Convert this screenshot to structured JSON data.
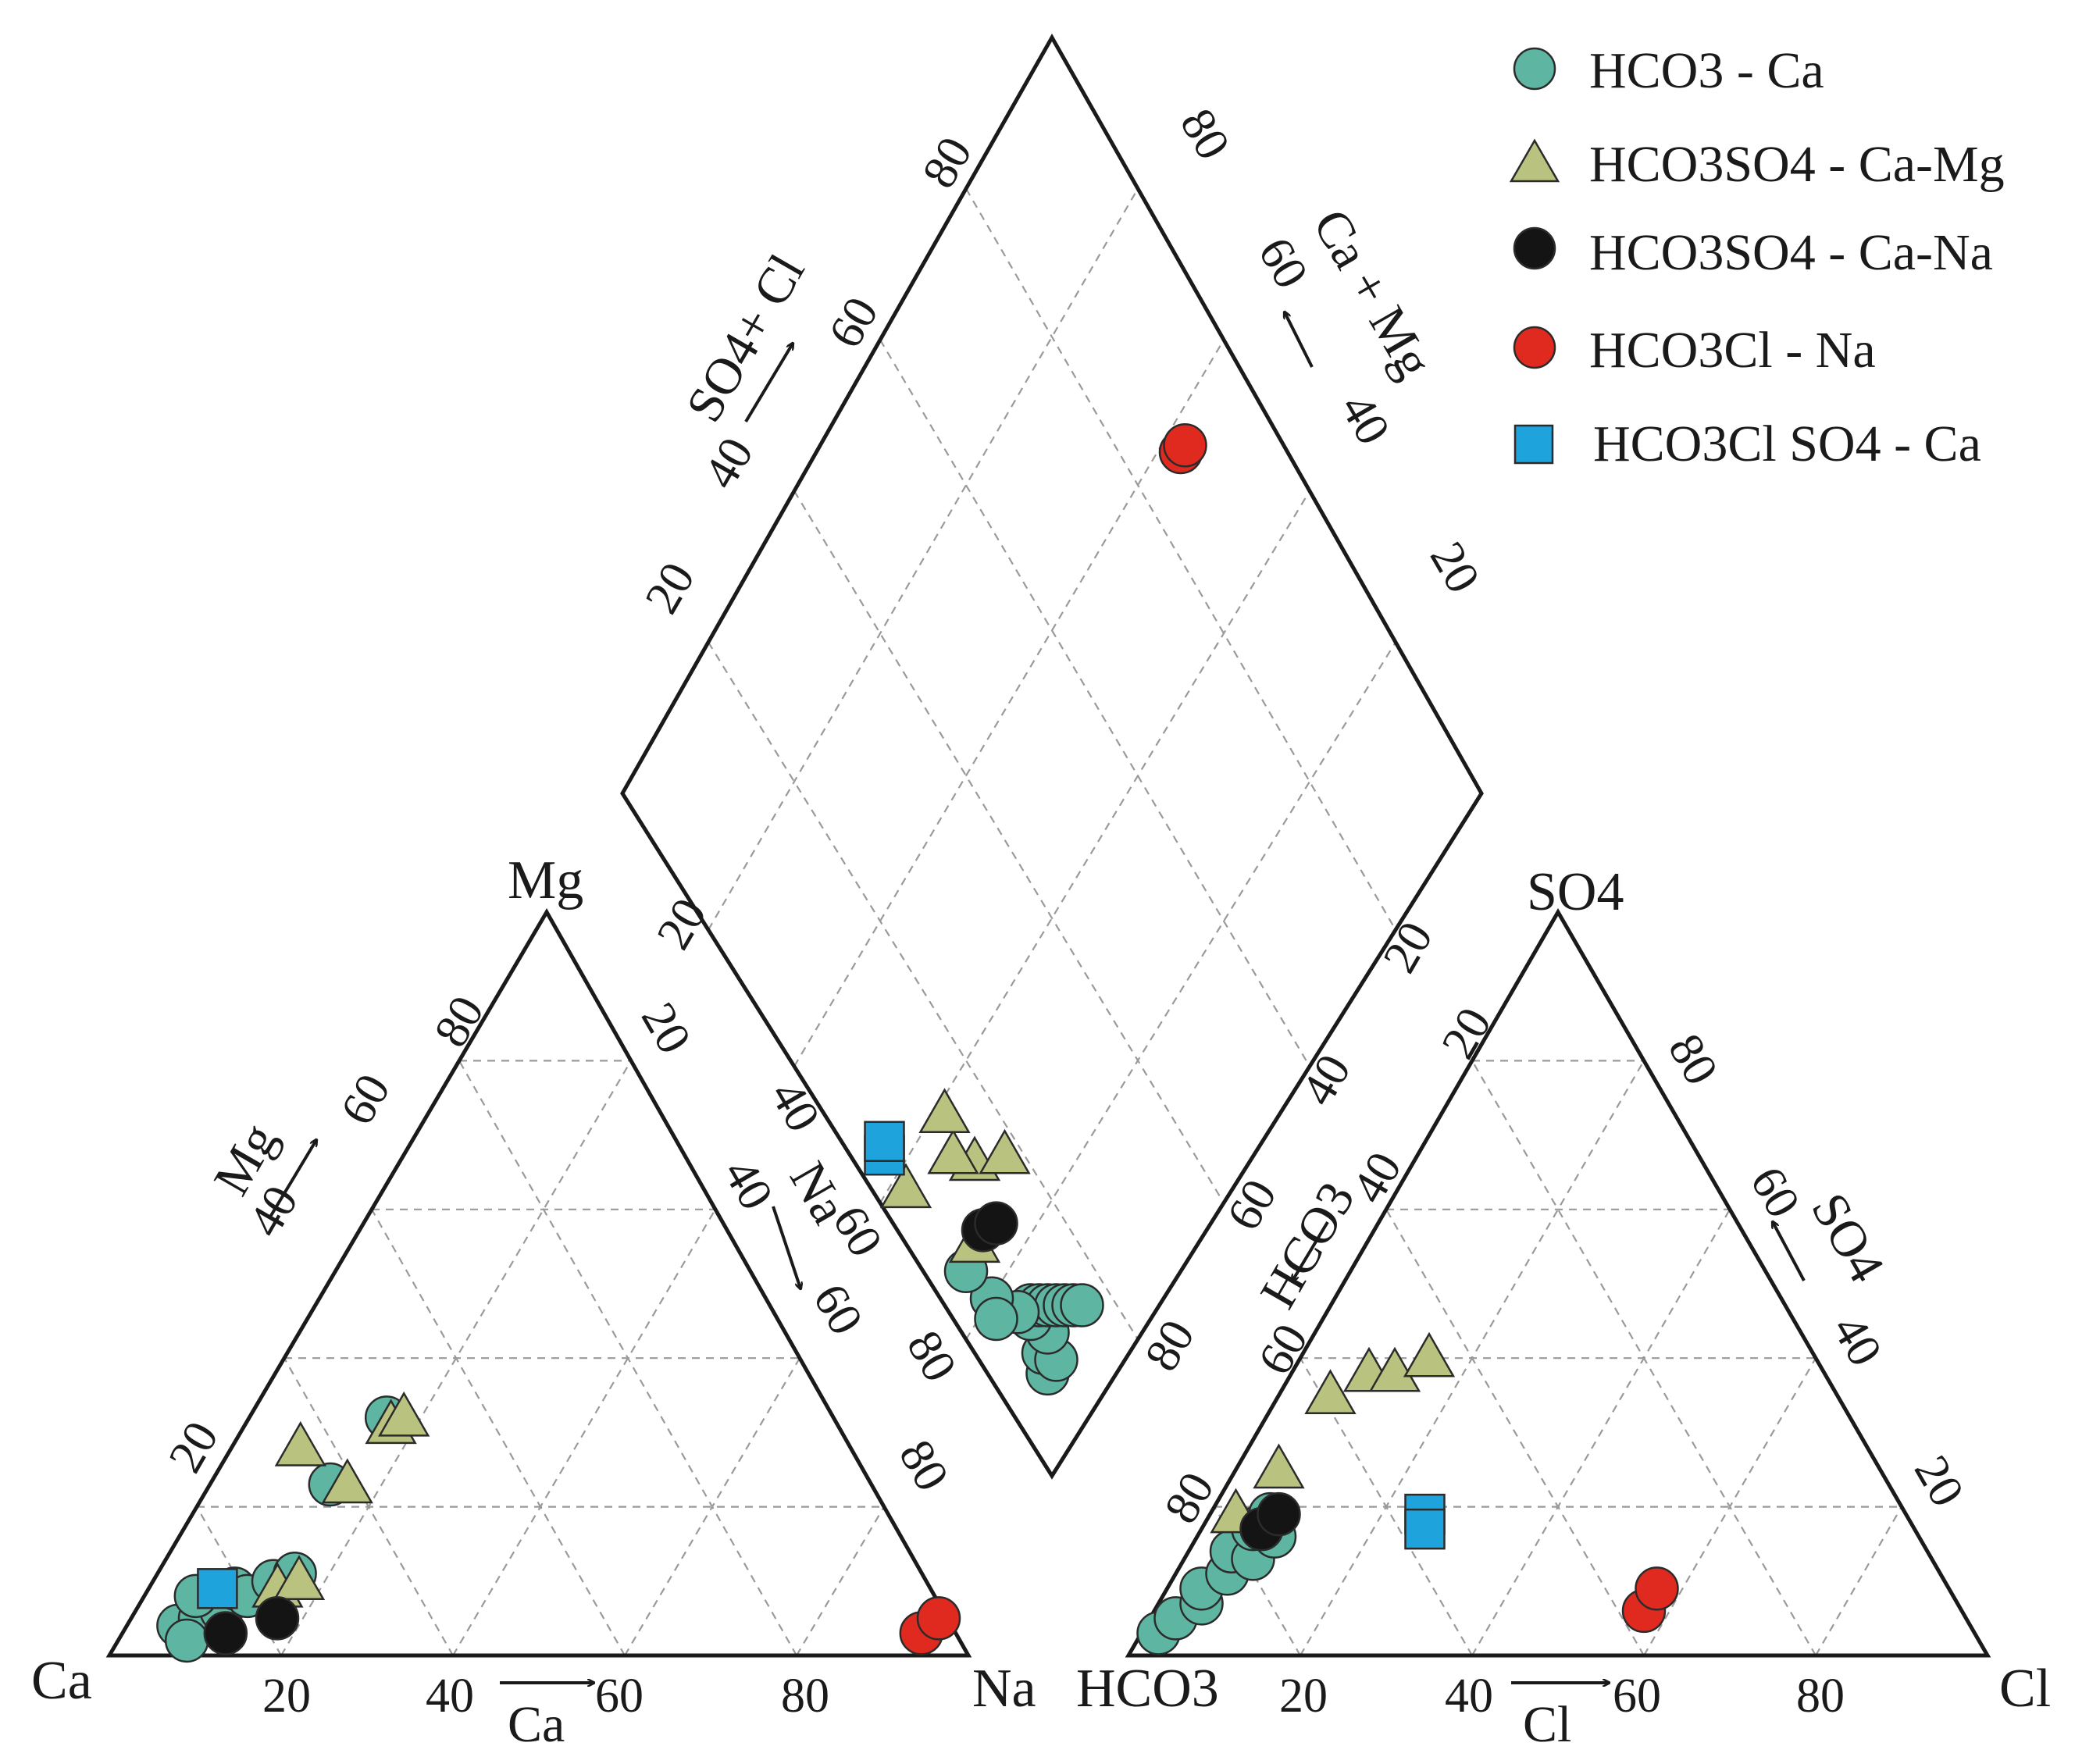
{
  "chart_data": {
    "type": "scatter",
    "subtype": "piper-diagram",
    "legend": [
      {
        "key": "hco3_ca",
        "label": "HCO3 - Ca",
        "marker": "circle",
        "color": "#5db5a2"
      },
      {
        "key": "hco3so4_camg",
        "label": "HCO3SO4 - Ca-Mg",
        "marker": "triangle",
        "color": "#b9c27f"
      },
      {
        "key": "hco3so4_cana",
        "label": "HCO3SO4 - Ca-Na",
        "marker": "circle",
        "color": "#141414"
      },
      {
        "key": "hco3cl_na",
        "label": "HCO3Cl - Na",
        "marker": "circle",
        "color": "#e02a1f"
      },
      {
        "key": "hco3clso4_ca",
        "label": "HCO3Cl SO4 - Ca",
        "marker": "square",
        "color": "#1ea3dc"
      }
    ],
    "legend_position": "top-right",
    "cation_triangle": {
      "vertices": {
        "left": "Ca",
        "top": "Mg",
        "right": "Na"
      },
      "bottom_ticks": [
        "20",
        "40",
        "60",
        "80"
      ],
      "left_ticks": [
        "20",
        "40",
        "60",
        "80"
      ],
      "right_ticks": [
        "20",
        "40",
        "60",
        "80"
      ],
      "bottom_axis_title": "Ca",
      "left_axis_title": "Mg",
      "right_axis_title": "Na"
    },
    "anion_triangle": {
      "vertices": {
        "left": "HCO3",
        "top": "SO4",
        "right": "Cl"
      },
      "bottom_ticks": [
        "20",
        "40",
        "60",
        "80"
      ],
      "left_ticks": [
        "80",
        "60",
        "40",
        "20"
      ],
      "right_ticks": [
        "20",
        "40",
        "60",
        "80"
      ],
      "bottom_axis_title": "Cl",
      "left_axis_title": "HCO3",
      "right_axis_title": "SO4"
    },
    "diamond": {
      "upper_left_ticks": [
        "20",
        "40",
        "60",
        "80"
      ],
      "upper_right_ticks": [
        "80",
        "60",
        "40",
        "20"
      ],
      "lower_left_ticks": [
        "20",
        "40",
        "60",
        "80"
      ],
      "lower_right_ticks": [
        "20",
        "40",
        "60",
        "80"
      ],
      "upper_left_axis_title": "SO4+ Cl",
      "upper_right_axis_title": "Ca + Mg"
    },
    "cation_points": [
      {
        "type": "hco3_ca",
        "na": 6,
        "mg": 4
      },
      {
        "type": "hco3_ca",
        "na": 8,
        "mg": 5
      },
      {
        "type": "hco3_ca",
        "na": 10,
        "mg": 6
      },
      {
        "type": "hco3_ca",
        "na": 6,
        "mg": 8
      },
      {
        "type": "hco3_ca",
        "na": 10,
        "mg": 9
      },
      {
        "type": "hco3_ca",
        "na": 12,
        "mg": 8
      },
      {
        "type": "hco3_ca",
        "na": 14,
        "mg": 10
      },
      {
        "type": "hco3_ca",
        "na": 16,
        "mg": 11
      },
      {
        "type": "hco3_ca",
        "na": 8,
        "mg": 2
      },
      {
        "type": "hco3_ca",
        "na": 14,
        "mg": 23
      },
      {
        "type": "hco3_ca",
        "na": 16,
        "mg": 32
      },
      {
        "type": "hco3so4_camg",
        "na": 15,
        "mg": 9
      },
      {
        "type": "hco3so4_camg",
        "na": 17,
        "mg": 10
      },
      {
        "type": "hco3so4_camg",
        "na": 8,
        "mg": 28
      },
      {
        "type": "hco3so4_camg",
        "na": 16,
        "mg": 23
      },
      {
        "type": "hco3so4_camg",
        "na": 17,
        "mg": 31
      },
      {
        "type": "hco3so4_camg",
        "na": 18,
        "mg": 32
      },
      {
        "type": "hco3so4_cana",
        "na": 12,
        "mg": 3
      },
      {
        "type": "hco3so4_cana",
        "na": 17,
        "mg": 5
      },
      {
        "type": "hco3clso4_ca",
        "na": 8,
        "mg": 9
      },
      {
        "type": "hco3cl_na",
        "na": 93,
        "mg": 3
      },
      {
        "type": "hco3cl_na",
        "na": 94,
        "mg": 5
      }
    ],
    "anion_points": [
      {
        "type": "hco3_ca",
        "cl": 2,
        "so4": 3
      },
      {
        "type": "hco3_ca",
        "cl": 3,
        "so4": 5
      },
      {
        "type": "hco3_ca",
        "cl": 5,
        "so4": 7
      },
      {
        "type": "hco3_ca",
        "cl": 4,
        "so4": 9
      },
      {
        "type": "hco3_ca",
        "cl": 6,
        "so4": 11
      },
      {
        "type": "hco3_ca",
        "cl": 5,
        "so4": 14
      },
      {
        "type": "hco3_ca",
        "cl": 8,
        "so4": 13
      },
      {
        "type": "hco3_ca",
        "cl": 6,
        "so4": 17
      },
      {
        "type": "hco3_ca",
        "cl": 7,
        "so4": 19
      },
      {
        "type": "hco3_ca",
        "cl": 9,
        "so4": 16
      },
      {
        "type": "hco3so4_camg",
        "cl": 3,
        "so4": 19
      },
      {
        "type": "hco3so4_camg",
        "cl": 5,
        "so4": 25
      },
      {
        "type": "hco3so4_camg",
        "cl": 6,
        "so4": 35
      },
      {
        "type": "hco3so4_camg",
        "cl": 9,
        "so4": 38
      },
      {
        "type": "hco3so4_camg",
        "cl": 12,
        "so4": 38
      },
      {
        "type": "hco3so4_camg",
        "cl": 15,
        "so4": 40
      },
      {
        "type": "hco3so4_cana",
        "cl": 7,
        "so4": 17
      },
      {
        "type": "hco3so4_cana",
        "cl": 8,
        "so4": 19
      },
      {
        "type": "hco3clso4_ca",
        "cl": 25,
        "so4": 19
      },
      {
        "type": "hco3clso4_ca",
        "cl": 26,
        "so4": 17
      },
      {
        "type": "hco3cl_na",
        "cl": 57,
        "so4": 6
      },
      {
        "type": "hco3cl_na",
        "cl": 57,
        "so4": 9
      }
    ],
    "diamond_points": [
      {
        "type": "hco3_ca",
        "cat_na": 7,
        "an_sum": 8
      },
      {
        "type": "hco3_ca",
        "cat_na": 8,
        "an_sum": 10
      },
      {
        "type": "hco3_ca",
        "cat_na": 9,
        "an_sum": 8
      },
      {
        "type": "hco3_ca",
        "cat_na": 10,
        "an_sum": 11
      },
      {
        "type": "hco3_ca",
        "cat_na": 9,
        "an_sum": 14
      },
      {
        "type": "hco3_ca",
        "cat_na": 10,
        "an_sum": 15
      },
      {
        "type": "hco3_ca",
        "cat_na": 11,
        "an_sum": 14
      },
      {
        "type": "hco3_ca",
        "cat_na": 12,
        "an_sum": 13
      },
      {
        "type": "hco3_ca",
        "cat_na": 13,
        "an_sum": 12
      },
      {
        "type": "hco3_ca",
        "cat_na": 14,
        "an_sum": 11
      },
      {
        "type": "hco3_ca",
        "cat_na": 15,
        "an_sum": 10
      },
      {
        "type": "hco3_ca",
        "cat_na": 16,
        "an_sum": 9
      },
      {
        "type": "hco3_ca",
        "cat_na": 8,
        "an_sum": 16
      },
      {
        "type": "hco3_ca",
        "cat_na": 6,
        "an_sum": 20
      },
      {
        "type": "hco3_ca",
        "cat_na": 5,
        "an_sum": 25
      },
      {
        "type": "hco3_ca",
        "cat_na": 5,
        "an_sum": 18
      },
      {
        "type": "hco3so4_camg",
        "cat_na": 8,
        "an_sum": 26
      },
      {
        "type": "hco3so4_camg",
        "cat_na": 4,
        "an_sum": 38
      },
      {
        "type": "hco3so4_camg",
        "cat_na": 14,
        "an_sum": 32
      },
      {
        "type": "hco3so4_camg",
        "cat_na": 12,
        "an_sum": 35
      },
      {
        "type": "hco3so4_camg",
        "cat_na": 18,
        "an_sum": 29
      },
      {
        "type": "hco3so4_camg",
        "cat_na": 14,
        "an_sum": 39
      },
      {
        "type": "hco3so4_cana",
        "cat_na": 10,
        "an_sum": 26
      },
      {
        "type": "hco3so4_cana",
        "cat_na": 12,
        "an_sum": 25
      },
      {
        "type": "hco3clso4_ca",
        "cat_na": 4,
        "an_sum": 43
      },
      {
        "type": "hco3clso4_ca",
        "cat_na": 5,
        "an_sum": 44
      },
      {
        "type": "hco3cl_na",
        "cat_na": 90,
        "an_sum": 60
      },
      {
        "type": "hco3cl_na",
        "cat_na": 91,
        "an_sum": 60
      }
    ]
  }
}
